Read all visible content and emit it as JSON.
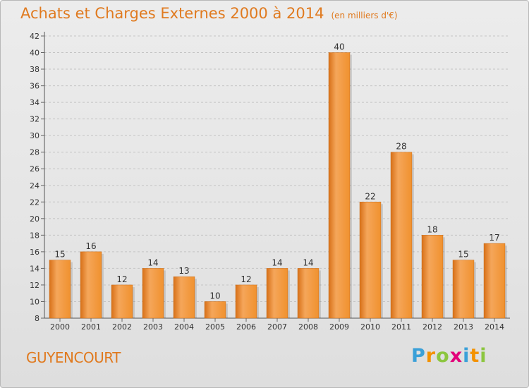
{
  "chart_data": {
    "type": "bar",
    "title": "Achats et Charges Externes 2000 à 2014",
    "subtitle": "(en milliers d'€)",
    "categories": [
      "2000",
      "2001",
      "2002",
      "2003",
      "2004",
      "2005",
      "2006",
      "2007",
      "2008",
      "2009",
      "2010",
      "2011",
      "2012",
      "2013",
      "2014"
    ],
    "values": [
      15,
      16,
      12,
      14,
      13,
      10,
      12,
      14,
      14,
      40,
      22,
      28,
      18,
      15,
      17
    ],
    "ylim": [
      8,
      42
    ],
    "yticks": [
      8,
      10,
      12,
      14,
      16,
      18,
      20,
      22,
      24,
      26,
      28,
      30,
      32,
      34,
      36,
      38,
      40,
      42
    ],
    "grid": true,
    "bar_color": "#f0912e",
    "bar_color_light": "#f5a65a",
    "bar_color_dark": "#d77018"
  },
  "footer": {
    "town": "GUYENCOURT",
    "logo_letters": [
      "P",
      "r",
      "o",
      "x",
      "i",
      "t",
      "i"
    ],
    "logo_colors": [
      "#3aa0d8",
      "#f39200",
      "#8cc63f",
      "#e2007a",
      "#3aa0d8",
      "#f39200",
      "#8cc63f"
    ]
  }
}
